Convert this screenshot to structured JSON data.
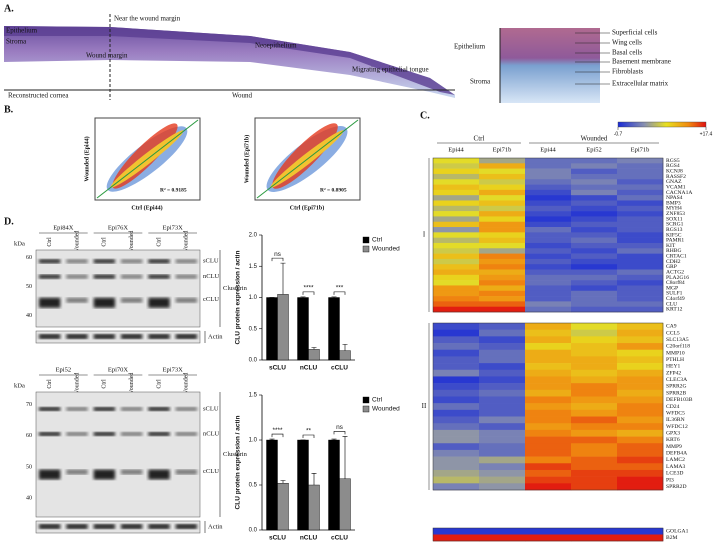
{
  "panel_a": {
    "label": "A.",
    "overview": {
      "epithelium": "Epithelium",
      "stroma": "Stroma",
      "near_margin": "Near the wound margin",
      "wound_margin": "Wound margin",
      "neoepithelium": "Neoepithelium",
      "tongue": "Migrating epithelial tongue",
      "reconstructed": "Reconstructed cornea",
      "wound": "Wound"
    },
    "detail": {
      "epithelium": "Epithelium",
      "stroma": "Stroma",
      "layers": [
        "Superficial cells",
        "Wing cells",
        "Basal cells",
        "Basement membrane",
        "Fibroblasts",
        "Extracellular matrix"
      ]
    }
  },
  "panel_b": {
    "label": "B.",
    "plots": [
      {
        "ylabel": "Wounded (Epi44)",
        "xlabel": "Ctrl (Epi44)",
        "r2": "R² = 0.9185"
      },
      {
        "ylabel": "Wounded (Epi71b)",
        "xlabel": "Ctrl (Epi71b)",
        "r2": "R² = 0.8905"
      }
    ]
  },
  "panel_c": {
    "label": "C."
  },
  "panel_d": {
    "label": "D.",
    "unit": "kDa",
    "blots": [
      {
        "samples": [
          "Epi84X",
          "Epi76X",
          "Epi73X"
        ],
        "lanes": [
          "Ctrl",
          "Wounded"
        ],
        "kda": [
          60,
          50,
          40
        ],
        "bands": [
          "sCLU",
          "nCLU",
          "cCLU"
        ],
        "protein": "Clusterin",
        "loading": "Actin"
      },
      {
        "samples": [
          "Epi52",
          "Epi70X",
          "Epi73X"
        ],
        "lanes": [
          "Ctrl",
          "Wounded"
        ],
        "kda": [
          70,
          60,
          50,
          40
        ],
        "bands": [
          "sCLU",
          "nCLU",
          "cCLU"
        ],
        "protein": "Clusterin",
        "loading": "Actin"
      }
    ]
  },
  "chart_data": [
    {
      "type": "heatmap",
      "column_groups": [
        {
          "name": "Ctrl",
          "columns": [
            "Epi44",
            "Epi71b"
          ]
        },
        {
          "name": "Wounded",
          "columns": [
            "Epi44",
            "Epi52",
            "Epi71b"
          ]
        }
      ],
      "zlim": [
        -0.7,
        17.4
      ],
      "zticks": [
        -0.7,
        {
          "value": 17.4,
          "label": "+17.4"
        }
      ],
      "row_groups": [
        {
          "name": "I",
          "rows": [
            "RGS5",
            "RGS4",
            "KCNJ8",
            "RASSF2",
            "GNAZ",
            "VCAM1",
            "CACNA1A",
            "NPAS4",
            "BMP3",
            "MYH4",
            "ZNF853",
            "SOX11",
            "SCRG1",
            "RGS13",
            "KIF5C",
            "PAMR1",
            "KIT",
            "RHBG",
            "CRTAC1",
            "CDH2",
            "GRP",
            "ACTG2",
            "PLA2G16",
            "C8orf84",
            "MGP",
            "SULF1",
            "C4orf49",
            "CLU",
            "KRT12"
          ],
          "values": [
            [
              9,
              6,
              3,
              3,
              4
            ],
            [
              8,
              12,
              3,
              4,
              3
            ],
            [
              10,
              9,
              4,
              2,
              3
            ],
            [
              7,
              11,
              4,
              3,
              3
            ],
            [
              9,
              8,
              3,
              4,
              2
            ],
            [
              11,
              10,
              2,
              3,
              3
            ],
            [
              10,
              12,
              1,
              4,
              2
            ],
            [
              6,
              9,
              0,
              1,
              3
            ],
            [
              10,
              11,
              1,
              2,
              1
            ],
            [
              7,
              8,
              2,
              1,
              2
            ],
            [
              9,
              12,
              1,
              0,
              1
            ],
            [
              6,
              10,
              0,
              1,
              2
            ],
            [
              11,
              13,
              1,
              2,
              2
            ],
            [
              5,
              13,
              3,
              1,
              2
            ],
            [
              9,
              10,
              2,
              2,
              1
            ],
            [
              7,
              11,
              2,
              3,
              1
            ],
            [
              9,
              9,
              1,
              2,
              2
            ],
            [
              8,
              6,
              2,
              1,
              3
            ],
            [
              11,
              14,
              1,
              2,
              1
            ],
            [
              8,
              13,
              2,
              1,
              1
            ],
            [
              11,
              14,
              1,
              0,
              1
            ],
            [
              12,
              12,
              2,
              2,
              3
            ],
            [
              10,
              13,
              3,
              3,
              2
            ],
            [
              9,
              14,
              3,
              2,
              1
            ],
            [
              13,
              12,
              2,
              1,
              2
            ],
            [
              13,
              14,
              2,
              3,
              2
            ],
            [
              14,
              13,
              2,
              3,
              2
            ],
            [
              15,
              15,
              4,
              3,
              3
            ],
            [
              17,
              17,
              3,
              2,
              2
            ]
          ]
        },
        {
          "name": "II",
          "rows": [
            "CA9",
            "CCL5",
            "SLC13A5",
            "C20orf118",
            "MMP10",
            "PTHLH",
            "HEY1",
            "ZFP42",
            "CLEC3A",
            "SPRR2G",
            "SPRR2B",
            "DEFB103B",
            "CD24",
            "WFDC5",
            "IL36RN",
            "WFDC12",
            "GPX3",
            "KRT6",
            "MMP9",
            "DEFB4A",
            "LAMC2",
            "LAMA3",
            "LCE3D",
            "PI3",
            "SPRR2D"
          ],
          "values": [
            [
              1,
              2,
              12,
              9,
              11
            ],
            [
              0,
              3,
              11,
              8,
              12
            ],
            [
              2,
              1,
              12,
              10,
              11
            ],
            [
              3,
              2,
              10,
              11,
              13
            ],
            [
              1,
              3,
              12,
              11,
              10
            ],
            [
              2,
              3,
              12,
              12,
              11
            ],
            [
              2,
              1,
              11,
              12,
              10
            ],
            [
              4,
              2,
              12,
              11,
              12
            ],
            [
              0,
              1,
              13,
              12,
              13
            ],
            [
              1,
              2,
              13,
              14,
              13
            ],
            [
              2,
              3,
              12,
              14,
              12
            ],
            [
              1,
              2,
              14,
              13,
              13
            ],
            [
              3,
              2,
              13,
              12,
              14
            ],
            [
              1,
              2,
              14,
              13,
              14
            ],
            [
              2,
              4,
              14,
              15,
              13
            ],
            [
              3,
              2,
              13,
              14,
              14
            ],
            [
              5,
              4,
              14,
              13,
              12
            ],
            [
              5,
              4,
              15,
              15,
              14
            ],
            [
              2,
              3,
              15,
              14,
              15
            ],
            [
              4,
              3,
              15,
              14,
              15
            ],
            [
              5,
              6,
              14,
              15,
              16
            ],
            [
              5,
              4,
              16,
              15,
              15
            ],
            [
              6,
              5,
              15,
              16,
              16
            ],
            [
              7,
              6,
              16,
              16,
              17
            ],
            [
              4,
              5,
              17,
              16,
              17
            ]
          ]
        },
        {
          "name": null,
          "rows": [
            "GOLGA1",
            "B2M"
          ],
          "values": [
            [
              0,
              0,
              0,
              0,
              0
            ],
            [
              17,
              17,
              17,
              17,
              17
            ]
          ]
        }
      ]
    },
    {
      "type": "bar",
      "ylabel": "CLU protein expression / actin",
      "categories": [
        "sCLU",
        "nCLU",
        "cCLU"
      ],
      "series": [
        {
          "name": "Ctrl",
          "color": "#000000",
          "values": [
            1,
            1,
            1
          ],
          "errors": [
            0,
            0.01,
            0.01
          ]
        },
        {
          "name": "Wounded",
          "color": "#8c8c8c",
          "values": [
            1.05,
            0.17,
            0.15
          ],
          "errors": [
            0.5,
            0.03,
            0.1
          ]
        }
      ],
      "annotations": [
        "ns",
        "****",
        "***"
      ],
      "ylim": [
        0,
        2
      ],
      "yticks": [
        {
          "value": 0,
          "label": "0.0"
        },
        {
          "value": 0.5,
          "label": "0.5"
        },
        {
          "value": 1,
          "label": "1.0"
        },
        {
          "value": 1.5,
          "label": "1.5"
        },
        {
          "value": 2,
          "label": "2.0"
        }
      ],
      "legend": "top-right"
    },
    {
      "type": "bar",
      "ylabel": "CLU protein expression / actin",
      "categories": [
        "sCLU",
        "nCLU",
        "cCLU"
      ],
      "series": [
        {
          "name": "Ctrl",
          "color": "#000000",
          "values": [
            1,
            1,
            1
          ],
          "errors": [
            0.01,
            0,
            0.01
          ]
        },
        {
          "name": "Wounded",
          "color": "#8c8c8c",
          "values": [
            0.52,
            0.5,
            0.57
          ],
          "errors": [
            0.03,
            0.13,
            0.47
          ]
        }
      ],
      "annotations": [
        "****",
        "**",
        "ns"
      ],
      "ylim": [
        0,
        1.5
      ],
      "yticks": [
        {
          "value": 0,
          "label": "0.0"
        },
        {
          "value": 0.5,
          "label": "0.5"
        },
        {
          "value": 1,
          "label": "1.0"
        },
        {
          "value": 1.5,
          "label": "1.5"
        }
      ],
      "legend": "top-right"
    }
  ]
}
